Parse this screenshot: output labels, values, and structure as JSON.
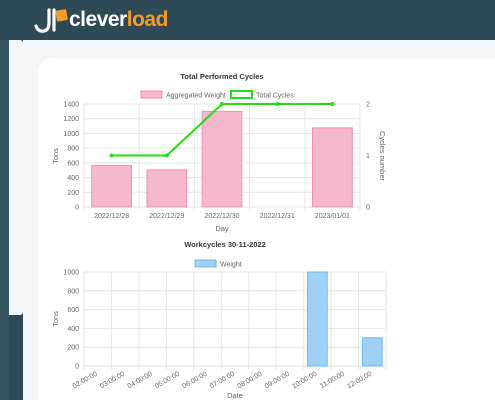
{
  "brand": {
    "name_main": "clever",
    "name_accent": "load"
  },
  "colors": {
    "bar_pink_fill": "#f5b8cc",
    "bar_pink_stroke": "#f48fb1",
    "line_green": "#22dd11",
    "bar_blue_fill": "#9fd0f5",
    "bar_blue_stroke": "#6fb8ef",
    "grid": "#e6e6e6",
    "text": "#666666",
    "title": "#333333"
  },
  "chart_data": [
    {
      "type": "bar",
      "title": "Total Performed Cycles",
      "xlabel": "Day",
      "ylabel": "Tons",
      "y2label": "Cycles number",
      "categories": [
        "2022/12/28",
        "2022/12/29",
        "2022/12/30",
        "2022/12/31",
        "2023/01/01"
      ],
      "ylim": [
        0,
        1400
      ],
      "yticks": [
        "0",
        "200",
        "400",
        "600",
        "800",
        "1000",
        "1200",
        "1400"
      ],
      "y2lim": [
        0,
        2
      ],
      "y2ticks": [
        "0",
        "1",
        "2"
      ],
      "legend_position": "top",
      "series": [
        {
          "name": "Aggregated Weight",
          "type": "bar",
          "axis": "left",
          "values": [
            565,
            505,
            1300,
            0,
            1075
          ]
        },
        {
          "name": "Total Cycles",
          "type": "line",
          "axis": "right",
          "values": [
            1,
            1,
            2,
            2,
            2
          ]
        }
      ]
    },
    {
      "type": "bar",
      "title": "Workcycles 30-11-2022",
      "xlabel": "Date",
      "ylabel": "Tons",
      "categories": [
        "02:00:00",
        "03:00:00",
        "04:00:00",
        "05:00:00",
        "06:00:00",
        "07:00:00",
        "08:00:00",
        "09:00:00",
        "10:00:00",
        "11:00:00",
        "12:00:00"
      ],
      "ylim": [
        0,
        1000
      ],
      "yticks": [
        "0",
        "200",
        "400",
        "600",
        "800",
        "1000"
      ],
      "legend_position": "top",
      "series": [
        {
          "name": "Weight",
          "values": [
            0,
            0,
            0,
            0,
            0,
            0,
            0,
            0,
            1000,
            0,
            300
          ]
        }
      ]
    }
  ]
}
